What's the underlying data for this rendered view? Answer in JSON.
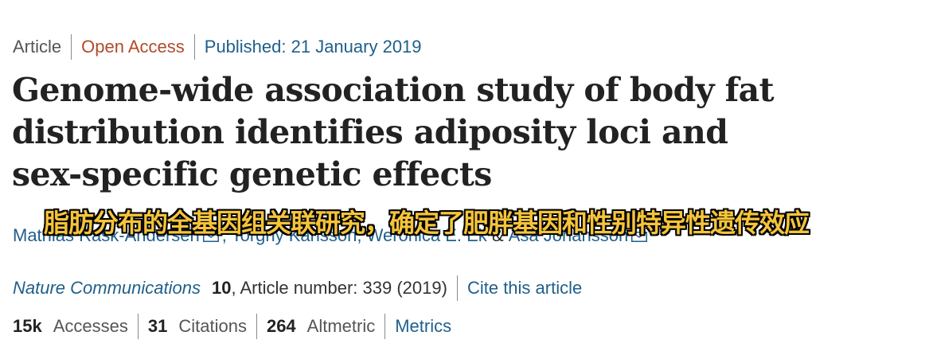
{
  "meta": {
    "article_type": "Article",
    "access": "Open Access",
    "published": "Published: 21 January 2019"
  },
  "title": "Genome-wide association study of body fat distribution identifies adiposity loci and sex-specific genetic effects",
  "authors": {
    "list": [
      "Mathias Rask-Andersen",
      "Torgny Karlsson",
      "Weronica E. Ek",
      "Åsa Johansson"
    ],
    "separator": ", ",
    "amp": "&"
  },
  "subtitle_cn": "脂肪分布的全基因组关联研究，确定了肥胖基因和性别特异性遗传效应",
  "journal": {
    "name": "Nature Communications",
    "volume": "10",
    "rest": ", Article number: 339 (2019)",
    "cite_label": "Cite this article"
  },
  "metrics": {
    "items": [
      {
        "value": "15k",
        "label": "Accesses"
      },
      {
        "value": "31",
        "label": "Citations"
      },
      {
        "value": "264",
        "label": "Altmetric"
      }
    ],
    "link_label": "Metrics"
  },
  "colors": {
    "link": "#1f5f8b",
    "open_access": "#b24a2a",
    "subtitle": "#f5c43a"
  }
}
